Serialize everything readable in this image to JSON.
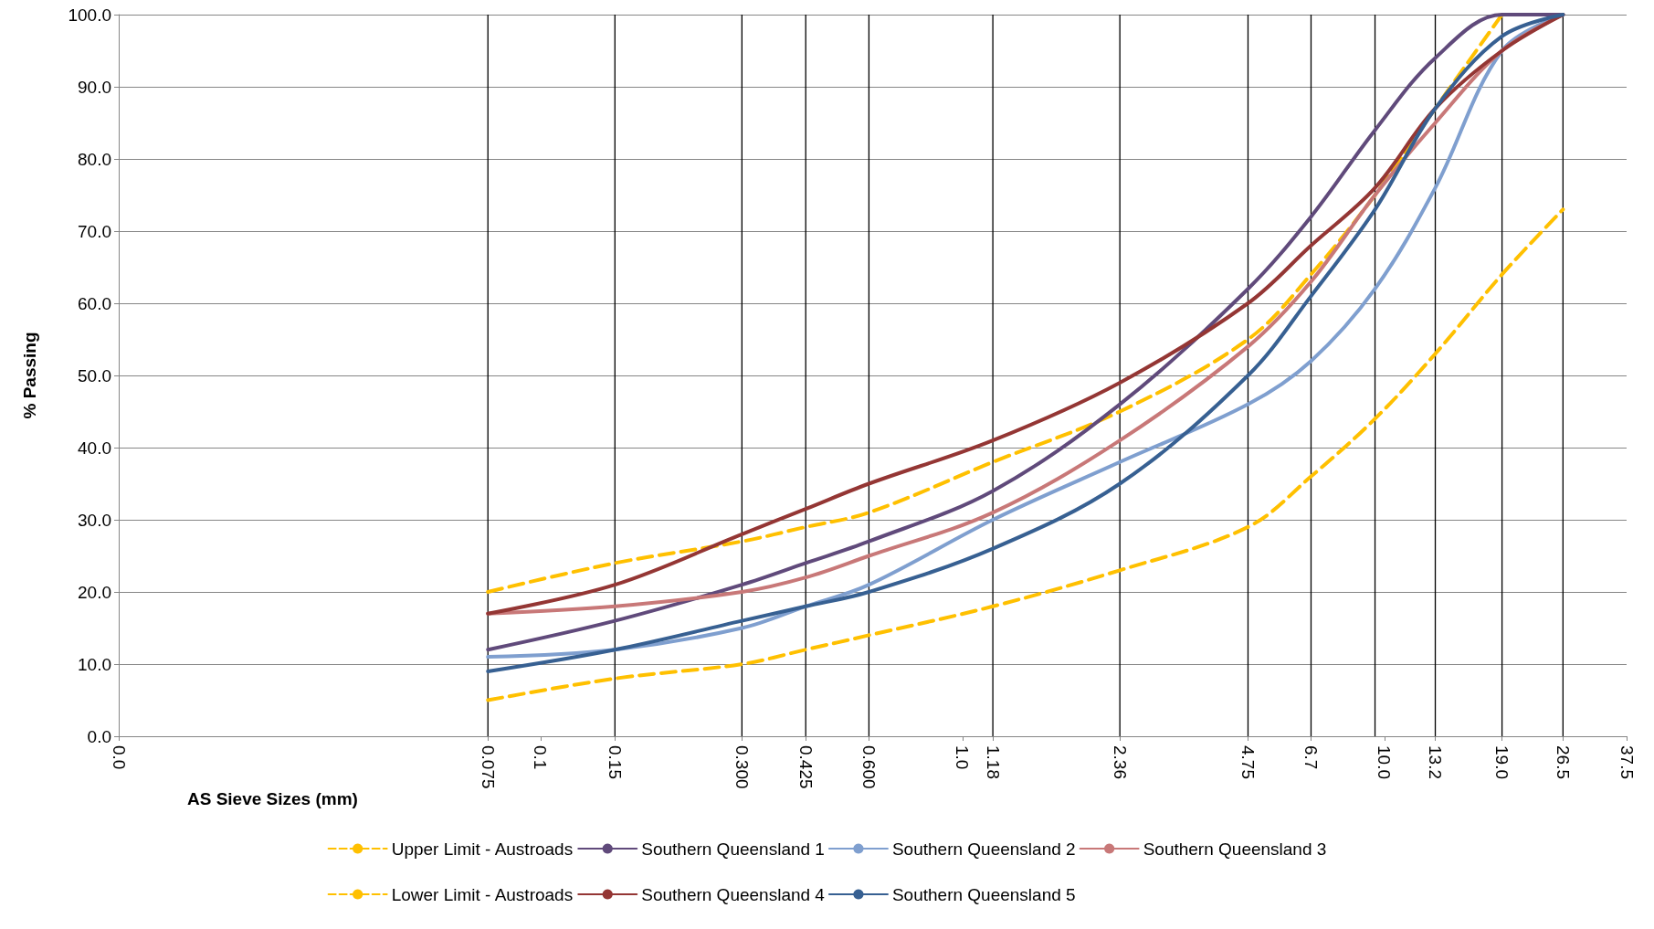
{
  "chart_data": {
    "type": "line",
    "xlabel": "AS Sieve Sizes (mm)",
    "ylabel": "% Passing",
    "log": "x",
    "grid": "y",
    "legend": "bottom",
    "marker": "none",
    "x": [
      0.075,
      0.15,
      0.3,
      0.425,
      0.6,
      1.18,
      2.36,
      4.75,
      6.7,
      9.5,
      13.2,
      19,
      26.5
    ],
    "xlim": [
      0.01,
      37.5
    ],
    "xticks": [
      {
        "value": 0.01,
        "label": "0.0"
      },
      0.075,
      0.1,
      0.15,
      {
        "value": 0.3,
        "label": "0.300"
      },
      0.425,
      {
        "value": 0.6,
        "label": "0.600"
      },
      {
        "value": 1,
        "label": "1.0"
      },
      1.18,
      2.36,
      4.75,
      6.7,
      {
        "value": 10,
        "label": "10.0"
      },
      13.2,
      {
        "value": 19,
        "label": "19.0"
      },
      26.5,
      37.5
    ],
    "ylim": [
      0,
      100
    ],
    "yticks": [
      {
        "value": 0,
        "label": "0.0"
      },
      {
        "value": 10,
        "label": "10.0"
      },
      {
        "value": 20,
        "label": "20.0"
      },
      {
        "value": 30,
        "label": "30.0"
      },
      {
        "value": 40,
        "label": "40.0"
      },
      {
        "value": 50,
        "label": "50.0"
      },
      {
        "value": 60,
        "label": "60.0"
      },
      {
        "value": 70,
        "label": "70.0"
      },
      {
        "value": 80,
        "label": "80.0"
      },
      {
        "value": 90,
        "label": "90.0"
      },
      {
        "value": 100,
        "label": "100.0"
      }
    ],
    "ref_lines": [
      {
        "axis": "x",
        "value": 0.075,
        "color": "#000000"
      },
      {
        "axis": "x",
        "value": 0.15,
        "color": "#000000"
      },
      {
        "axis": "x",
        "value": 0.3,
        "color": "#000000"
      },
      {
        "axis": "x",
        "value": 0.425,
        "color": "#000000"
      },
      {
        "axis": "x",
        "value": 0.6,
        "color": "#000000"
      },
      {
        "axis": "x",
        "value": 1.18,
        "color": "#000000"
      },
      {
        "axis": "x",
        "value": 2.36,
        "color": "#000000"
      },
      {
        "axis": "x",
        "value": 4.75,
        "color": "#000000"
      },
      {
        "axis": "x",
        "value": 6.7,
        "color": "#000000"
      },
      {
        "axis": "x",
        "value": 9.5,
        "color": "#000000"
      },
      {
        "axis": "x",
        "value": 13.2,
        "color": "#000000"
      },
      {
        "axis": "x",
        "value": 19,
        "color": "#000000"
      },
      {
        "axis": "x",
        "value": 26.5,
        "color": "#000000"
      }
    ],
    "series": [
      {
        "name": "Upper Limit - Austroads",
        "color": "#ffc000",
        "line_style": "dashed",
        "values": [
          20,
          24,
          27,
          29,
          31,
          38,
          45,
          55,
          64,
          75,
          87,
          100,
          null
        ]
      },
      {
        "name": "Southern Queensland 1",
        "color": "#604a7b",
        "line_style": "solid",
        "values": [
          12,
          16,
          21,
          24,
          27,
          34,
          46,
          62,
          72,
          84,
          94,
          100,
          100
        ]
      },
      {
        "name": "Southern Queensland 2",
        "color": "#7f9fcf",
        "line_style": "solid",
        "values": [
          11,
          12,
          15,
          18,
          21,
          30,
          38,
          46,
          52,
          62,
          76,
          95,
          100
        ]
      },
      {
        "name": "Southern Queensland 3",
        "color": "#c87878",
        "line_style": "solid",
        "values": [
          17,
          18,
          20,
          22,
          25,
          31,
          41,
          54,
          63,
          75,
          85,
          95,
          100
        ]
      },
      {
        "name": "Lower Limit - Austroads",
        "color": "#ffc000",
        "line_style": "dashed",
        "values": [
          5,
          8,
          10,
          12,
          14,
          18,
          23,
          29,
          36,
          44,
          53,
          64,
          73
        ]
      },
      {
        "name": "Southern Queensland 4",
        "color": "#943634",
        "line_style": "solid",
        "values": [
          17,
          21,
          28,
          31.5,
          35,
          41,
          49,
          60,
          68,
          76,
          87,
          95,
          100
        ]
      },
      {
        "name": "Southern Queensland 5",
        "color": "#376092",
        "line_style": "solid",
        "values": [
          9,
          12,
          16,
          18,
          20,
          26,
          35,
          50,
          61,
          73,
          87,
          97,
          100
        ]
      }
    ]
  }
}
